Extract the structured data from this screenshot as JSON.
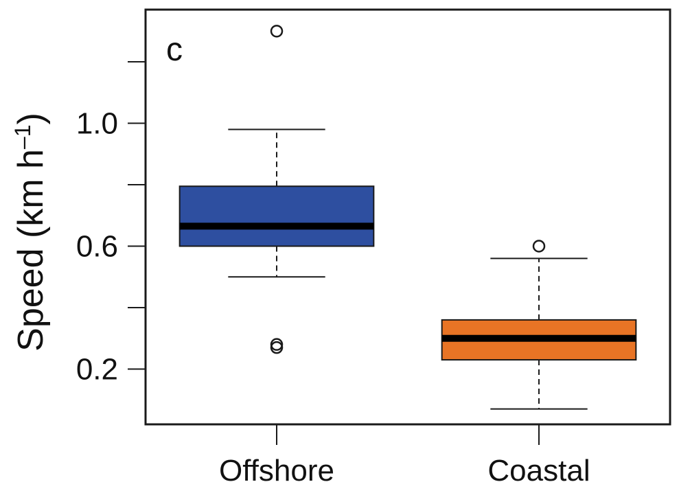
{
  "chart_data": {
    "type": "box",
    "panel_label": "c",
    "ylabel": "Speed (km h",
    "ylabel_sup": "–1",
    "ylabel_close": ")",
    "ylim": [
      0.02,
      1.37
    ],
    "y_ticks": [
      0.2,
      0.4,
      0.6,
      0.8,
      1.0,
      1.2
    ],
    "y_tick_labels": [
      "0.2",
      "",
      "0.6",
      "",
      "1.0",
      ""
    ],
    "categories": [
      "Offshore",
      "Coastal"
    ],
    "boxes": [
      {
        "category": "Offshore",
        "color": "#2e4fa0",
        "whisker_low": 0.5,
        "q1": 0.6,
        "median": 0.665,
        "q3": 0.795,
        "whisker_high": 0.98,
        "outliers": [
          1.3,
          0.28,
          0.27
        ]
      },
      {
        "category": "Coastal",
        "color": "#e87425",
        "whisker_low": 0.07,
        "q1": 0.23,
        "median": 0.3,
        "q3": 0.36,
        "whisker_high": 0.56,
        "outliers": [
          0.6
        ]
      }
    ],
    "grid": false,
    "legend": "none"
  }
}
